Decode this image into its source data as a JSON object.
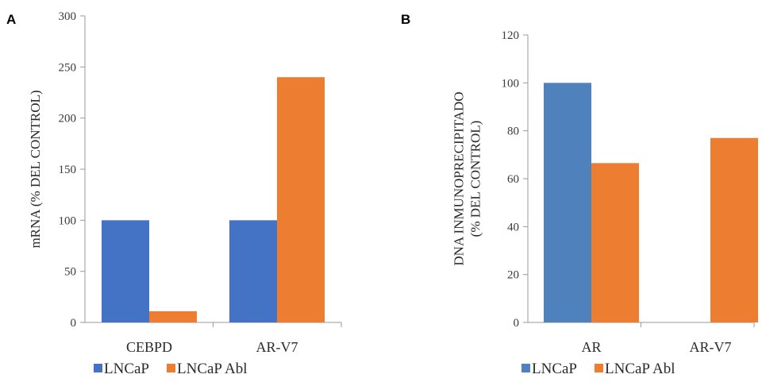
{
  "chart_data": [
    {
      "panel": "A",
      "type": "bar",
      "categories": [
        "CEBPD",
        "AR-V7"
      ],
      "series": [
        {
          "name": "LNCaP",
          "values": [
            100,
            100
          ],
          "color": "#4472C4"
        },
        {
          "name": "LNCaP Abl",
          "values": [
            11,
            240
          ],
          "color": "#ED7D31"
        }
      ],
      "ylabel": "mRNA (% DEL CONTROL)",
      "ylabel_lines": [
        "mRNA (% DEL CONTROL)"
      ],
      "ylim": [
        0,
        300
      ],
      "yticks": [
        0,
        50,
        100,
        150,
        200,
        250,
        300
      ],
      "grid": false,
      "legend": "bottom-left"
    },
    {
      "panel": "B",
      "type": "bar",
      "categories": [
        "AR",
        "AR-V7"
      ],
      "series": [
        {
          "name": "LNCaP",
          "values": [
            100,
            0
          ],
          "color": "#4F81BD"
        },
        {
          "name": "LNCaP Abl",
          "values": [
            66.5,
            77
          ],
          "color": "#ED7D31"
        }
      ],
      "ylabel": "DNA INMUNOPRECIPITADO (% DEL CONTROL)",
      "ylabel_lines": [
        "DNA INMUNOPRECIPITADO",
        "(% DEL CONTROL)"
      ],
      "ylim": [
        0,
        120
      ],
      "yticks": [
        0,
        20,
        40,
        60,
        80,
        100,
        120
      ],
      "grid": false,
      "legend": "bottom-left"
    }
  ]
}
